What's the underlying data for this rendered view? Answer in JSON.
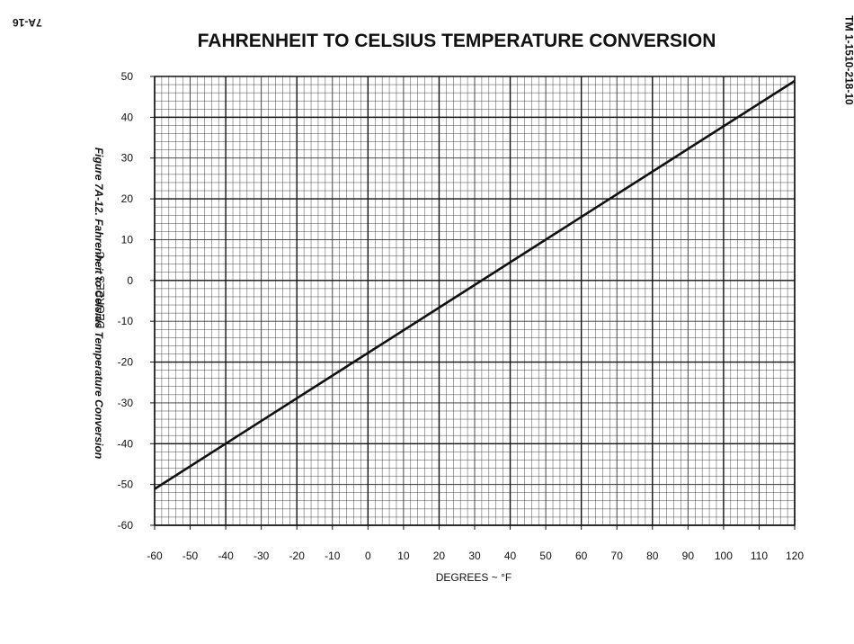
{
  "page": {
    "page_number": "7A-16",
    "doc_id": "TM 1-1510-218-10",
    "caption": "Figure 7A-12. Fahrenheit to Celsius Temperature Conversion"
  },
  "chart_data": {
    "type": "line",
    "title": "FAHRENHEIT TO CELSIUS TEMPERATURE CONVERSION",
    "xlabel": "DEGREES ~ °F",
    "ylabel": "DEGREES ~ °C",
    "xlim": [
      -60,
      120
    ],
    "ylim": [
      -60,
      50
    ],
    "x_ticks": [
      -60,
      -50,
      -40,
      -30,
      -20,
      -10,
      0,
      10,
      20,
      30,
      40,
      50,
      60,
      70,
      80,
      90,
      100,
      110,
      120
    ],
    "y_ticks": [
      50,
      40,
      30,
      20,
      10,
      0,
      -10,
      -20,
      -30,
      -40,
      -50,
      -60
    ],
    "grid": true,
    "series": [
      {
        "x": [
          -60,
          120
        ],
        "y": [
          -51.1,
          48.9
        ]
      }
    ],
    "colors": {
      "line": "#111111",
      "grid": "#333333"
    }
  }
}
